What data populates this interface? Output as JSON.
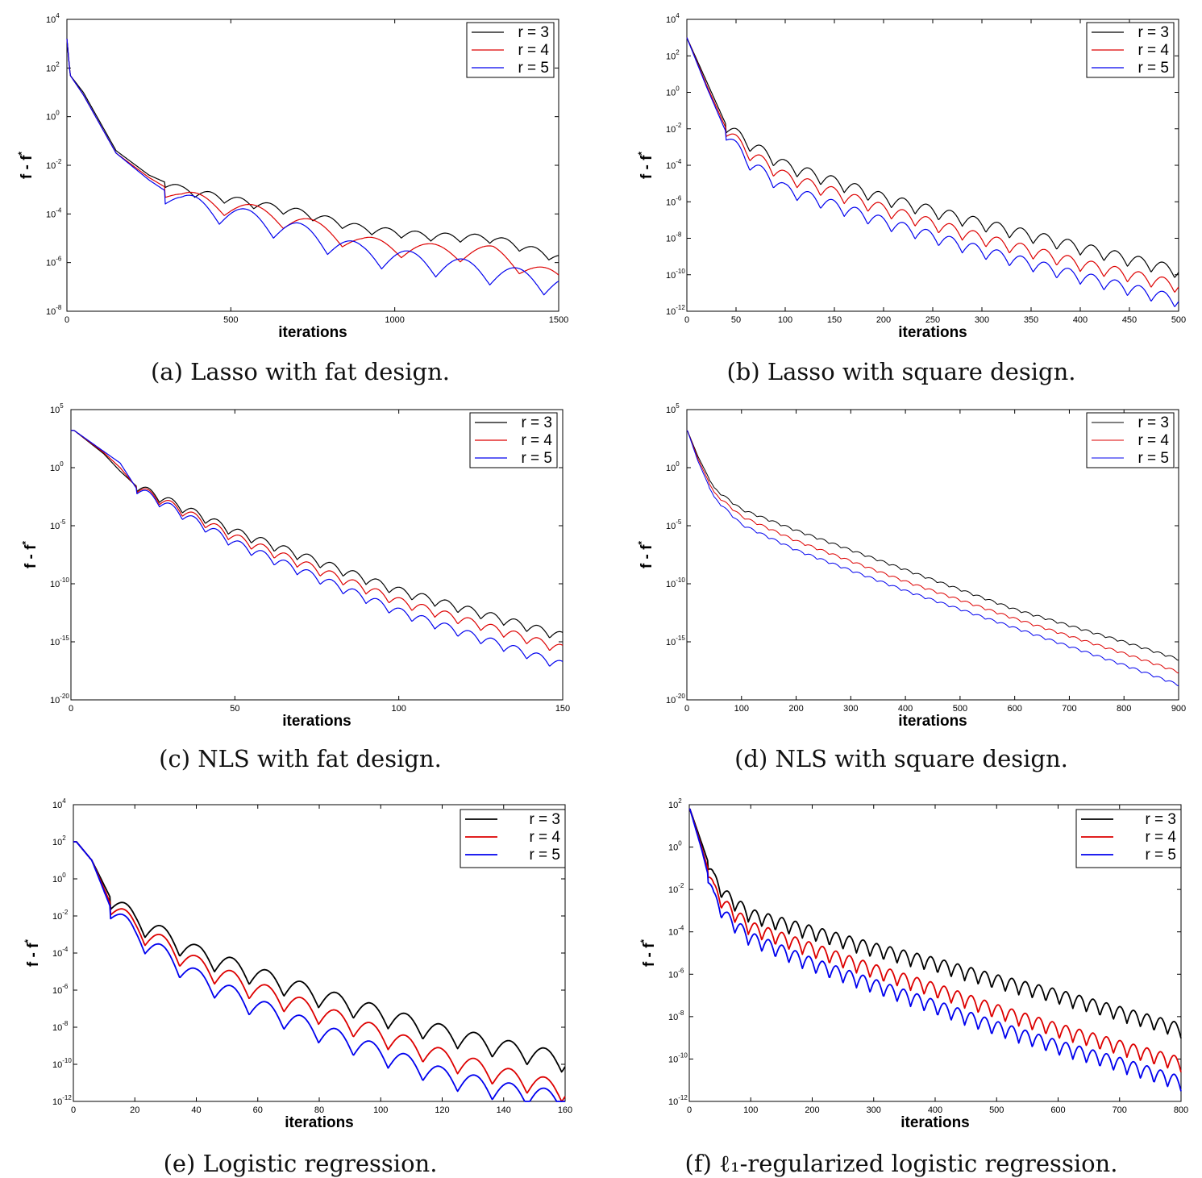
{
  "chart_data": [
    {
      "type": "line",
      "caption": "(a) Lasso with fat design.",
      "xlabel": "iterations",
      "ylabel": "f - f",
      "ylabel_sup": "*",
      "xlim": [
        0,
        1500
      ],
      "xticks": [
        0,
        500,
        1000,
        1500
      ],
      "ylog": true,
      "ylim_exp": [
        -8,
        4
      ],
      "yticks_exp": [
        -8,
        -6,
        -4,
        -2,
        0,
        2,
        4
      ],
      "legend": "top-right",
      "line_width": 1.2,
      "shape": "lasso",
      "series": [
        {
          "name": "r = 3",
          "color": "#000000",
          "start_exp": 3.2,
          "points": [
            [
              0,
              3.2
            ],
            [
              10,
              1.7
            ],
            [
              50,
              1.0
            ],
            [
              150,
              -1.4
            ],
            [
              250,
              -2.4
            ],
            [
              350,
              -3.0
            ],
            [
              500,
              -3.4
            ],
            [
              700,
              -3.9
            ],
            [
              900,
              -4.6
            ],
            [
              1100,
              -4.9
            ],
            [
              1300,
              -5.0
            ],
            [
              1500,
              -5.8
            ]
          ],
          "osc_period": 90,
          "osc_amp": 0.35,
          "osc_from": 300
        },
        {
          "name": "r = 4",
          "color": "#dd0000",
          "start_exp": 3.2,
          "points": [
            [
              0,
              3.2
            ],
            [
              10,
              1.7
            ],
            [
              50,
              0.9
            ],
            [
              150,
              -1.5
            ],
            [
              250,
              -2.5
            ],
            [
              350,
              -3.3
            ],
            [
              500,
              -3.7
            ],
            [
              700,
              -4.3
            ],
            [
              900,
              -5.2
            ],
            [
              1100,
              -5.5
            ],
            [
              1300,
              -5.6
            ],
            [
              1500,
              -6.7
            ]
          ],
          "osc_period": 180,
          "osc_amp": 0.7,
          "osc_from": 300
        },
        {
          "name": "r = 5",
          "color": "#0000ee",
          "start_exp": 3.2,
          "points": [
            [
              0,
              3.2
            ],
            [
              10,
              1.7
            ],
            [
              50,
              0.9
            ],
            [
              150,
              -1.5
            ],
            [
              250,
              -2.6
            ],
            [
              350,
              -3.5
            ],
            [
              500,
              -4.0
            ],
            [
              700,
              -4.7
            ],
            [
              900,
              -5.6
            ],
            [
              1100,
              -6.0
            ],
            [
              1300,
              -6.4
            ],
            [
              1500,
              -6.9
            ]
          ],
          "osc_period": 165,
          "osc_amp": 0.9,
          "osc_from": 300
        }
      ]
    },
    {
      "type": "line",
      "caption": "(b) Lasso with square design.",
      "xlabel": "iterations",
      "ylabel": "f - f",
      "ylabel_sup": "*",
      "xlim": [
        0,
        500
      ],
      "xticks": [
        0,
        50,
        100,
        150,
        200,
        250,
        300,
        350,
        400,
        450,
        500
      ],
      "ylog": true,
      "ylim_exp": [
        -12,
        4
      ],
      "yticks_exp": [
        -12,
        -10,
        -8,
        -6,
        -4,
        -2,
        0,
        2,
        4
      ],
      "legend": "top-right",
      "line_width": 1.2,
      "shape": "osc",
      "series": [
        {
          "name": "r = 3",
          "color": "#000000",
          "points": [
            [
              0,
              3.0
            ],
            [
              20,
              0.6
            ],
            [
              40,
              -1.8
            ],
            [
              60,
              -2.7
            ],
            [
              100,
              -4.0
            ],
            [
              200,
              -5.8
            ],
            [
              300,
              -7.2
            ],
            [
              400,
              -8.5
            ],
            [
              500,
              -9.8
            ]
          ],
          "osc_period": 24,
          "osc_amp": 0.7,
          "osc_from": 40
        },
        {
          "name": "r = 4",
          "color": "#dd0000",
          "points": [
            [
              0,
              3.0
            ],
            [
              20,
              0.4
            ],
            [
              40,
              -2.0
            ],
            [
              60,
              -3.2
            ],
            [
              100,
              -4.6
            ],
            [
              200,
              -6.4
            ],
            [
              300,
              -8.0
            ],
            [
              400,
              -9.4
            ],
            [
              500,
              -10.6
            ]
          ],
          "osc_period": 24,
          "osc_amp": 0.7,
          "osc_from": 40
        },
        {
          "name": "r = 5",
          "color": "#0000ee",
          "points": [
            [
              0,
              3.0
            ],
            [
              20,
              0.3
            ],
            [
              40,
              -2.2
            ],
            [
              60,
              -3.7
            ],
            [
              100,
              -5.3
            ],
            [
              200,
              -7.1
            ],
            [
              300,
              -8.7
            ],
            [
              400,
              -10.1
            ],
            [
              500,
              -11.4
            ]
          ],
          "osc_period": 24,
          "osc_amp": 0.7,
          "osc_from": 40
        }
      ]
    },
    {
      "type": "line",
      "caption": "(c) NLS with fat design.",
      "xlabel": "iterations",
      "ylabel": "f - f",
      "ylabel_sup": "*",
      "xlim": [
        0,
        150
      ],
      "xticks": [
        0,
        50,
        100,
        150
      ],
      "ylog": true,
      "ylim_exp": [
        -20,
        5
      ],
      "yticks_exp": [
        -20,
        -15,
        -10,
        -5,
        0,
        5
      ],
      "legend": "top-right",
      "line_width": 1.2,
      "shape": "osc",
      "series": [
        {
          "name": "r = 3",
          "color": "#000000",
          "points": [
            [
              1,
              3.2
            ],
            [
              10,
              1.2
            ],
            [
              15,
              -0.3
            ],
            [
              20,
              -1.6
            ],
            [
              50,
              -5.5
            ],
            [
              100,
              -10.6
            ],
            [
              150,
              -14.5
            ]
          ],
          "osc_period": 7,
          "osc_amp": 0.8,
          "osc_from": 20
        },
        {
          "name": "r = 4",
          "color": "#dd0000",
          "points": [
            [
              1,
              3.2
            ],
            [
              10,
              1.3
            ],
            [
              15,
              0.0
            ],
            [
              20,
              -1.7
            ],
            [
              50,
              -6.0
            ],
            [
              100,
              -11.5
            ],
            [
              150,
              -15.6
            ]
          ],
          "osc_period": 7,
          "osc_amp": 0.8,
          "osc_from": 20
        },
        {
          "name": "r = 5",
          "color": "#0000ee",
          "points": [
            [
              1,
              3.2
            ],
            [
              10,
              1.4
            ],
            [
              15,
              0.4
            ],
            [
              20,
              -1.8
            ],
            [
              50,
              -6.5
            ],
            [
              100,
              -12.4
            ],
            [
              150,
              -17.0
            ]
          ],
          "osc_period": 7,
          "osc_amp": 0.8,
          "osc_from": 20
        }
      ]
    },
    {
      "type": "line",
      "caption": "(d) NLS with square design.",
      "xlabel": "iterations",
      "ylabel": "f - f",
      "ylabel_sup": "*",
      "xlim": [
        0,
        900
      ],
      "xticks": [
        0,
        100,
        200,
        300,
        400,
        500,
        600,
        700,
        800,
        900
      ],
      "ylog": true,
      "ylim_exp": [
        -20,
        5
      ],
      "yticks_exp": [
        -20,
        -15,
        -10,
        -5,
        0,
        5
      ],
      "legend": "top-right",
      "line_width": 1.0,
      "shape": "osc",
      "series": [
        {
          "name": "r = 3",
          "color": "#000000",
          "points": [
            [
              1,
              3.2
            ],
            [
              20,
              1.0
            ],
            [
              50,
              -1.8
            ],
            [
              100,
              -3.6
            ],
            [
              200,
              -5.4
            ],
            [
              400,
              -8.8
            ],
            [
              600,
              -12.2
            ],
            [
              800,
              -15.0
            ],
            [
              900,
              -16.5
            ]
          ],
          "osc_period": 22,
          "osc_amp": 0.2,
          "osc_from": 40
        },
        {
          "name": "r = 4",
          "color": "#dd0000",
          "points": [
            [
              1,
              3.2
            ],
            [
              20,
              0.8
            ],
            [
              50,
              -2.2
            ],
            [
              100,
              -4.2
            ],
            [
              200,
              -6.3
            ],
            [
              400,
              -9.8
            ],
            [
              600,
              -13.0
            ],
            [
              800,
              -16.0
            ],
            [
              900,
              -17.6
            ]
          ],
          "osc_period": 22,
          "osc_amp": 0.2,
          "osc_from": 40
        },
        {
          "name": "r = 5",
          "color": "#0000ee",
          "points": [
            [
              1,
              3.2
            ],
            [
              20,
              0.6
            ],
            [
              50,
              -2.6
            ],
            [
              100,
              -4.9
            ],
            [
              200,
              -7.1
            ],
            [
              400,
              -10.6
            ],
            [
              600,
              -13.8
            ],
            [
              800,
              -17.0
            ],
            [
              900,
              -18.7
            ]
          ],
          "osc_period": 22,
          "osc_amp": 0.2,
          "osc_from": 40
        }
      ]
    },
    {
      "type": "line",
      "caption": "(e) Logistic regression.",
      "xlabel": "iterations",
      "ylabel": "f - f",
      "ylabel_sup": "*",
      "xlim": [
        0,
        160
      ],
      "xticks": [
        0,
        20,
        40,
        60,
        80,
        100,
        120,
        140,
        160
      ],
      "ylog": true,
      "ylim_exp": [
        -12,
        4
      ],
      "yticks_exp": [
        -12,
        -10,
        -8,
        -6,
        -4,
        -2,
        0,
        2,
        4
      ],
      "legend": "top-right",
      "line_width": 1.8,
      "shape": "osc",
      "series": [
        {
          "name": "r = 3",
          "color": "#000000",
          "points": [
            [
              1,
              2.0
            ],
            [
              6,
              1.0
            ],
            [
              12,
              -1.0
            ],
            [
              20,
              -2.2
            ],
            [
              40,
              -4.0
            ],
            [
              60,
              -5.2
            ],
            [
              80,
              -6.3
            ],
            [
              100,
              -7.3
            ],
            [
              120,
              -8.3
            ],
            [
              140,
              -9.1
            ],
            [
              160,
              -9.8
            ]
          ],
          "osc_period": 11.3,
          "osc_amp": 1.1,
          "osc_from": 12
        },
        {
          "name": "r = 4",
          "color": "#dd0000",
          "points": [
            [
              1,
              2.0
            ],
            [
              6,
              1.0
            ],
            [
              12,
              -1.3
            ],
            [
              20,
              -2.6
            ],
            [
              40,
              -4.6
            ],
            [
              60,
              -6.0
            ],
            [
              80,
              -7.2
            ],
            [
              100,
              -8.4
            ],
            [
              120,
              -9.6
            ],
            [
              140,
              -10.6
            ],
            [
              160,
              -11.4
            ]
          ],
          "osc_period": 11.3,
          "osc_amp": 1.1,
          "osc_from": 12
        },
        {
          "name": "r = 5",
          "color": "#0000ee",
          "points": [
            [
              1,
              2.0
            ],
            [
              6,
              1.0
            ],
            [
              12,
              -1.5
            ],
            [
              20,
              -3.0
            ],
            [
              40,
              -5.3
            ],
            [
              60,
              -6.9
            ],
            [
              80,
              -8.2
            ],
            [
              100,
              -9.4
            ],
            [
              120,
              -10.6
            ],
            [
              140,
              -11.4
            ],
            [
              160,
              -11.9
            ]
          ],
          "osc_period": 11.3,
          "osc_amp": 1.1,
          "osc_from": 12
        }
      ]
    },
    {
      "type": "line",
      "caption": "(f) ℓ₁-regularized logistic regression.",
      "xlabel": "iterations",
      "ylabel": "f - f",
      "ylabel_sup": "*",
      "xlim": [
        0,
        800
      ],
      "xticks": [
        0,
        100,
        200,
        300,
        400,
        500,
        600,
        700,
        800
      ],
      "ylog": true,
      "ylim_exp": [
        -12,
        2
      ],
      "yticks_exp": [
        -12,
        -10,
        -8,
        -6,
        -4,
        -2,
        0,
        2
      ],
      "legend": "top-right",
      "line_width": 1.8,
      "shape": "osc",
      "series": [
        {
          "name": "r = 3",
          "color": "#000000",
          "points": [
            [
              1,
              1.8
            ],
            [
              20,
              0.2
            ],
            [
              40,
              -1.5
            ],
            [
              60,
              -2.3
            ],
            [
              100,
              -3.2
            ],
            [
              200,
              -4.0
            ],
            [
              300,
              -4.8
            ],
            [
              400,
              -5.5
            ],
            [
              500,
              -6.3
            ],
            [
              600,
              -7.0
            ],
            [
              700,
              -7.8
            ],
            [
              800,
              -8.6
            ]
          ],
          "osc_period": 22,
          "osc_amp": 0.7,
          "osc_from": 30
        },
        {
          "name": "r = 4",
          "color": "#dd0000",
          "points": [
            [
              1,
              1.8
            ],
            [
              20,
              0.0
            ],
            [
              40,
              -2.0
            ],
            [
              60,
              -2.8
            ],
            [
              100,
              -3.8
            ],
            [
              200,
              -4.8
            ],
            [
              300,
              -5.8
            ],
            [
              400,
              -6.7
            ],
            [
              500,
              -7.7
            ],
            [
              600,
              -8.6
            ],
            [
              700,
              -9.4
            ],
            [
              800,
              -10.2
            ]
          ],
          "osc_period": 22,
          "osc_amp": 0.7,
          "osc_from": 30
        },
        {
          "name": "r = 5",
          "color": "#0000ee",
          "points": [
            [
              1,
              1.8
            ],
            [
              20,
              -0.1
            ],
            [
              40,
              -2.4
            ],
            [
              60,
              -3.3
            ],
            [
              100,
              -4.3
            ],
            [
              200,
              -5.5
            ],
            [
              300,
              -6.5
            ],
            [
              400,
              -7.5
            ],
            [
              500,
              -8.5
            ],
            [
              600,
              -9.4
            ],
            [
              700,
              -10.2
            ],
            [
              800,
              -11.1
            ]
          ],
          "osc_period": 22,
          "osc_amp": 0.7,
          "osc_from": 30
        }
      ]
    }
  ]
}
